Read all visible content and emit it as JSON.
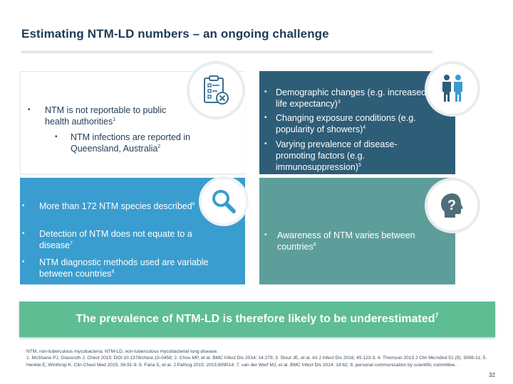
{
  "slide": {
    "title": "Estimating NTM-LD numbers – an ongoing challenge",
    "page_number": "32"
  },
  "panels": {
    "top_left": {
      "bullet1": {
        "text": "NTM is not reportable to public health authorities",
        "sup": "1"
      },
      "sub_bullet1": {
        "text": "NTM infections are reported in Queensland, Australia",
        "sup": "2"
      },
      "icon": "clipboard-x-icon"
    },
    "top_right": {
      "bullet1": {
        "text": "Demographic changes (e.g. increased life expectancy)",
        "sup": "3"
      },
      "bullet2": {
        "text": "Changing exposure conditions (e.g. popularity of showers)",
        "sup": "4"
      },
      "bullet3": {
        "text": "Varying prevalence of disease-promoting factors (e.g. immunosuppression)",
        "sup": "5"
      },
      "icon": "people-icon"
    },
    "bottom_left": {
      "bullet1": {
        "text": "More than 172 NTM species described",
        "sup": "6"
      },
      "bullet2": {
        "text": "Detection of NTM does not equate to a disease",
        "sup": "7"
      },
      "bullet3": {
        "text": "NTM diagnostic methods used are variable between countries",
        "sup": "8"
      },
      "icon": "magnifier-icon"
    },
    "bottom_right": {
      "bullet1": {
        "text": "Awareness of NTM varies between countries",
        "sup": "8"
      },
      "icon": "head-question-icon"
    }
  },
  "banner": {
    "text": "The prevalence of NTM-LD is therefore likely to be underestimated",
    "sup": "7"
  },
  "references": {
    "line1": "NTM, non-tuberculous mycobacteria; NTM-LD, non-tuberculous mycobacterial lung disease.",
    "line2": "1. McShane PJ, Glassroth J. Chest 2015: DOI:10.1378/chest.15-0458; 2. Chou MP, et al. BMC Infect Dis 2014; 14:279; 3. Stout JE, et al. Int J Infect Dis 2016; 45:123-3; 4. Thomson 2013 J Clin Microbiol 51 (9): 3006-11; 5. Henkle E, Winthrop K. Clin Chest Med 2015; 36:91-9; 6. Faria S, et al. J Pathog 2015: 2015:809014; 7. van der Werf MJ, et al. BMC Infect Dis 2014; 14:62; 8. personal communication by scientific committee."
  },
  "colors": {
    "title": "#1f3b57",
    "panel_top_right": "#2e5d77",
    "panel_bottom_left": "#3a9dcf",
    "panel_bottom_right": "#5e9e9a",
    "banner": "#5ebd93"
  }
}
